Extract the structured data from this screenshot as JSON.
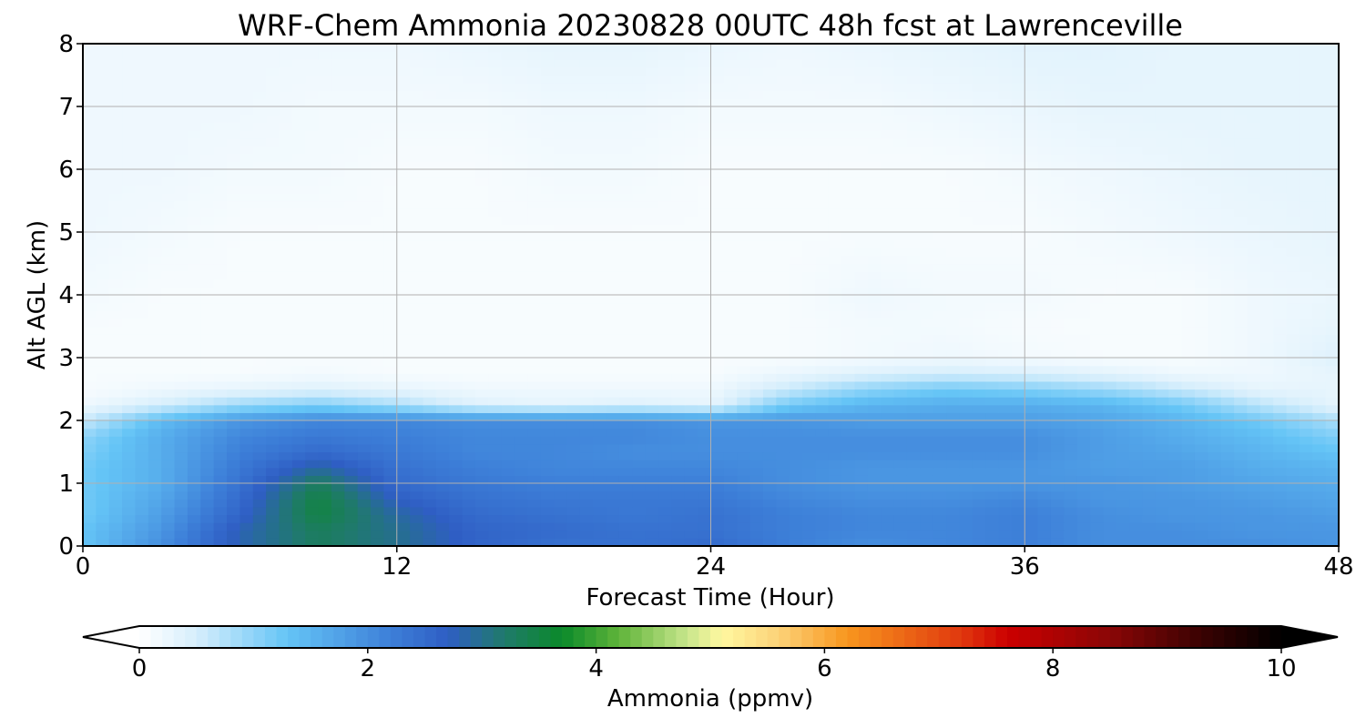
{
  "chart_data": {
    "type": "heatmap",
    "title": "WRF-Chem Ammonia  20230828 00UTC 48h fcst at Lawrenceville",
    "xlabel": "Forecast Time (Hour)",
    "ylabel": "Alt AGL (km)",
    "xlim": [
      0,
      48
    ],
    "ylim": [
      0,
      8
    ],
    "xticks": [
      0,
      12,
      24,
      36,
      48
    ],
    "yticks": [
      0,
      1,
      2,
      3,
      4,
      5,
      6,
      7,
      8
    ],
    "grid": true,
    "x": [
      0,
      3,
      6,
      9,
      12,
      15,
      18,
      21,
      24,
      27,
      30,
      33,
      36,
      39,
      42,
      45,
      48
    ],
    "y": [
      0,
      0.25,
      0.5,
      0.75,
      1,
      1.25,
      1.5,
      1.75,
      2,
      2.25,
      2.5,
      2.75,
      3,
      3.5,
      4,
      5,
      6,
      7,
      8
    ],
    "z": [
      [
        1.3,
        2.0,
        2.8,
        3.3,
        3.0,
        2.6,
        2.4,
        2.4,
        2.5,
        2.2,
        2.0,
        2.1,
        2.2,
        2.0,
        2.0,
        2.0,
        1.9
      ],
      [
        1.3,
        1.9,
        2.8,
        3.3,
        3.0,
        2.6,
        2.5,
        2.4,
        2.4,
        2.2,
        2.1,
        2.1,
        2.2,
        2.0,
        2.0,
        1.9,
        1.9
      ],
      [
        1.2,
        1.8,
        2.6,
        3.5,
        2.9,
        2.5,
        2.4,
        2.3,
        2.4,
        2.2,
        2.1,
        2.1,
        2.2,
        2.0,
        1.9,
        1.9,
        1.8
      ],
      [
        1.2,
        1.7,
        2.5,
        3.5,
        2.7,
        2.4,
        2.3,
        2.3,
        2.3,
        2.1,
        2.0,
        2.0,
        2.1,
        1.9,
        1.9,
        1.8,
        1.7
      ],
      [
        1.2,
        1.6,
        2.4,
        3.3,
        2.5,
        2.3,
        2.2,
        2.2,
        2.2,
        2.0,
        1.9,
        1.9,
        1.9,
        1.9,
        1.8,
        1.7,
        1.6
      ],
      [
        1.2,
        1.6,
        2.3,
        2.9,
        2.4,
        2.2,
        2.1,
        2.1,
        2.1,
        2.0,
        1.9,
        1.9,
        1.9,
        1.8,
        1.8,
        1.6,
        1.5
      ],
      [
        1.1,
        1.6,
        2.2,
        2.5,
        2.3,
        2.1,
        2.1,
        2.0,
        2.0,
        2.0,
        2.0,
        2.0,
        2.0,
        1.8,
        1.7,
        1.5,
        1.3
      ],
      [
        1.0,
        1.6,
        2.1,
        2.3,
        2.2,
        2.1,
        2.1,
        2.1,
        2.0,
        2.0,
        2.0,
        2.0,
        2.0,
        1.8,
        1.6,
        1.4,
        1.1
      ],
      [
        0.6,
        1.4,
        1.9,
        2.1,
        2.1,
        2.0,
        2.0,
        2.0,
        1.9,
        1.9,
        1.8,
        1.8,
        1.8,
        1.7,
        1.5,
        1.2,
        0.8
      ],
      [
        0.2,
        0.5,
        0.9,
        1.1,
        0.8,
        0.4,
        0.3,
        0.4,
        0.3,
        1.2,
        1.5,
        1.6,
        1.6,
        1.5,
        1.2,
        0.7,
        0.3
      ],
      [
        0.1,
        0.2,
        0.3,
        0.4,
        0.3,
        0.2,
        0.2,
        0.2,
        0.2,
        0.6,
        1.0,
        1.2,
        1.1,
        0.9,
        0.6,
        0.3,
        0.3
      ],
      [
        0.1,
        0.1,
        0.1,
        0.15,
        0.1,
        0.1,
        0.1,
        0.1,
        0.1,
        0.25,
        0.4,
        0.5,
        0.45,
        0.35,
        0.2,
        0.2,
        0.3
      ],
      [
        0.1,
        0.1,
        0.1,
        0.1,
        0.1,
        0.1,
        0.1,
        0.1,
        0.1,
        0.1,
        0.15,
        0.2,
        0.15,
        0.1,
        0.1,
        0.2,
        0.4
      ],
      [
        0.1,
        0.1,
        0.1,
        0.1,
        0.1,
        0.1,
        0.1,
        0.1,
        0.1,
        0.1,
        0.15,
        0.15,
        0.1,
        0.1,
        0.1,
        0.2,
        0.3
      ],
      [
        0.15,
        0.1,
        0.1,
        0.1,
        0.1,
        0.1,
        0.1,
        0.1,
        0.1,
        0.1,
        0.2,
        0.15,
        0.15,
        0.1,
        0.1,
        0.2,
        0.25
      ],
      [
        0.2,
        0.15,
        0.1,
        0.1,
        0.1,
        0.1,
        0.1,
        0.1,
        0.1,
        0.1,
        0.1,
        0.1,
        0.1,
        0.15,
        0.2,
        0.25,
        0.3
      ],
      [
        0.2,
        0.2,
        0.15,
        0.15,
        0.1,
        0.1,
        0.15,
        0.15,
        0.1,
        0.1,
        0.1,
        0.1,
        0.15,
        0.2,
        0.25,
        0.3,
        0.3
      ],
      [
        0.2,
        0.2,
        0.2,
        0.15,
        0.15,
        0.15,
        0.2,
        0.2,
        0.15,
        0.15,
        0.15,
        0.2,
        0.25,
        0.3,
        0.3,
        0.3,
        0.3
      ],
      [
        0.2,
        0.2,
        0.2,
        0.2,
        0.2,
        0.25,
        0.3,
        0.3,
        0.25,
        0.2,
        0.25,
        0.3,
        0.35,
        0.35,
        0.3,
        0.3,
        0.3
      ]
    ],
    "colorbar": {
      "label": "Ammonia  (ppmv)",
      "min": 0,
      "max": 10,
      "ticks": [
        0,
        2,
        4,
        6,
        8,
        10
      ],
      "extend": "both",
      "stops": [
        {
          "v": 0,
          "c": "#ffffff"
        },
        {
          "v": 0.5,
          "c": "#d6eefc"
        },
        {
          "v": 1.3,
          "c": "#64c4f6"
        },
        {
          "v": 2.2,
          "c": "#3d7fd8"
        },
        {
          "v": 2.7,
          "c": "#2f5ec4"
        },
        {
          "v": 3.2,
          "c": "#1f7a6a"
        },
        {
          "v": 3.7,
          "c": "#0b8a2a"
        },
        {
          "v": 4.2,
          "c": "#5fb43a"
        },
        {
          "v": 4.8,
          "c": "#c8e68c"
        },
        {
          "v": 5.1,
          "c": "#fff8a0"
        },
        {
          "v": 5.6,
          "c": "#fcd278"
        },
        {
          "v": 6.2,
          "c": "#f8961e"
        },
        {
          "v": 7.2,
          "c": "#e0380e"
        },
        {
          "v": 7.6,
          "c": "#cc0000"
        },
        {
          "v": 8.5,
          "c": "#8a0606"
        },
        {
          "v": 9.3,
          "c": "#3a0202"
        },
        {
          "v": 10,
          "c": "#000000"
        }
      ]
    }
  }
}
